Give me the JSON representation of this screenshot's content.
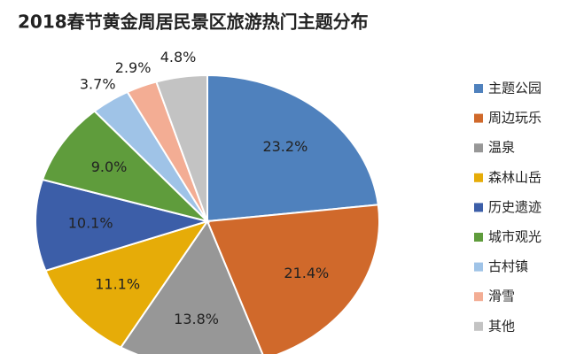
{
  "chart_data": {
    "type": "pie",
    "title": "2018春节黄金周居民景区旅游热门主题分布",
    "categories": [
      "主题公园",
      "周边玩乐",
      "温泉",
      "森林山岳",
      "历史遗迹",
      "城市观光",
      "古村镇",
      "滑雪",
      "其他"
    ],
    "values": [
      23.2,
      21.4,
      13.8,
      11.1,
      10.1,
      9.0,
      3.7,
      2.9,
      4.8
    ],
    "value_labels": [
      "23.2%",
      "21.4%",
      "13.8%",
      "11.1%",
      "10.1%",
      "9.0%",
      "3.7%",
      "2.9%",
      "4.8%"
    ],
    "colors": [
      "#4f81bd",
      "#d0692b",
      "#979797",
      "#e6ac08",
      "#3c5ea8",
      "#5f9c3c",
      "#9fc3e7",
      "#f3ad94",
      "#c3c3c3"
    ],
    "legend": "right"
  }
}
